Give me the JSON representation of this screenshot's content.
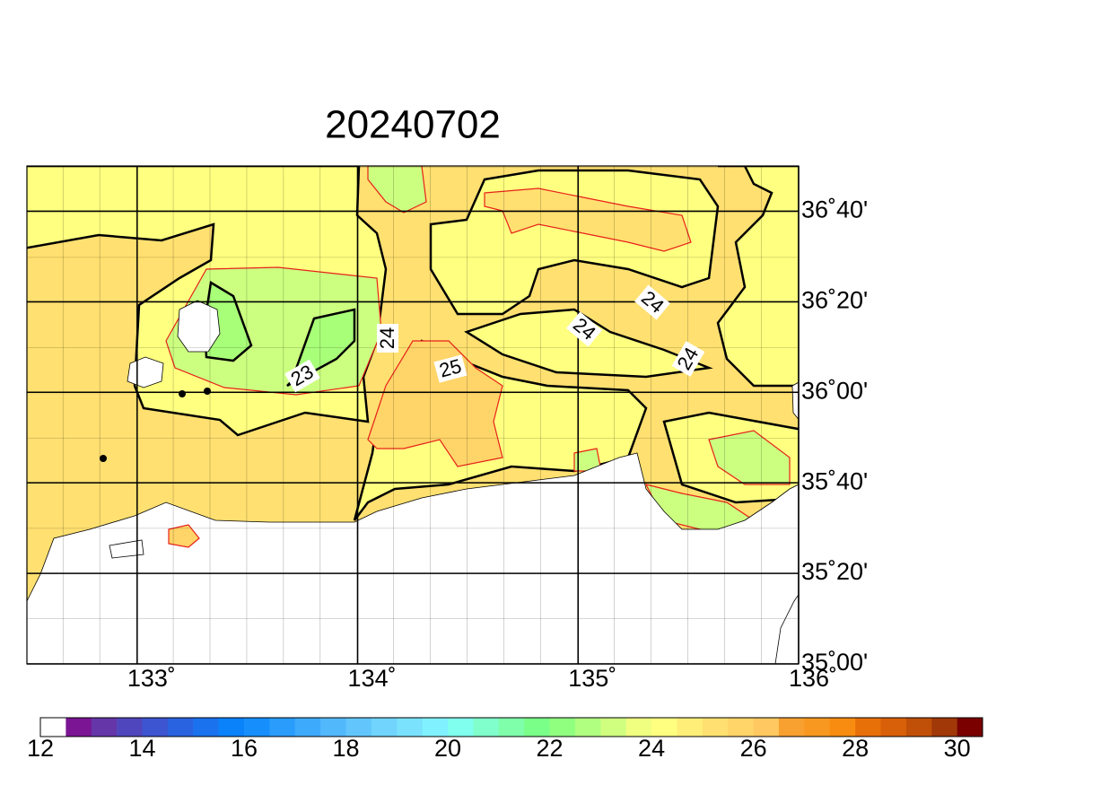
{
  "title": "20240702",
  "map": {
    "xlim": [
      132.5,
      136
    ],
    "ylim": [
      35,
      36.8333
    ],
    "xticks": [
      {
        "value": 133,
        "label": "133˚"
      },
      {
        "value": 134,
        "label": "134˚"
      },
      {
        "value": 135,
        "label": "135˚"
      },
      {
        "value": 136,
        "label": "136˚"
      }
    ],
    "yticks": [
      {
        "value": 35,
        "label": "35˚00'"
      },
      {
        "value": 35.3333,
        "label": "35˚20'"
      },
      {
        "value": 35.6667,
        "label": "35˚40'"
      },
      {
        "value": 36,
        "label": "36˚00'"
      },
      {
        "value": 36.3333,
        "label": "36˚20'"
      },
      {
        "value": 36.6667,
        "label": "36˚40'"
      }
    ],
    "contour_labels": [
      24,
      23,
      25,
      24,
      24,
      24
    ]
  },
  "colorbar": {
    "range": [
      12,
      30
    ],
    "ticks": [
      12,
      14,
      16,
      18,
      20,
      22,
      24,
      26,
      28,
      30
    ],
    "colors": [
      "#ffffff",
      "#7b1594",
      "#6536a8",
      "#4f46bd",
      "#3d55d0",
      "#2a63e0",
      "#1a72ee",
      "#0a82fa",
      "#168ffc",
      "#2a9cfc",
      "#3eaafc",
      "#52b8fc",
      "#62c6fc",
      "#70d4fc",
      "#7ae2fc",
      "#80f2ff",
      "#80ffee",
      "#80ffcc",
      "#80ffaa",
      "#7aff88",
      "#90ff80",
      "#b0ff80",
      "#d0ff80",
      "#f0ff80",
      "#ffff80",
      "#ffee78",
      "#ffe070",
      "#ffd468",
      "#ffc860",
      "#f8a030",
      "#f89820",
      "#f88c10",
      "#e87008",
      "#d86008",
      "#c05008",
      "#a03808",
      "#7a0000"
    ]
  }
}
